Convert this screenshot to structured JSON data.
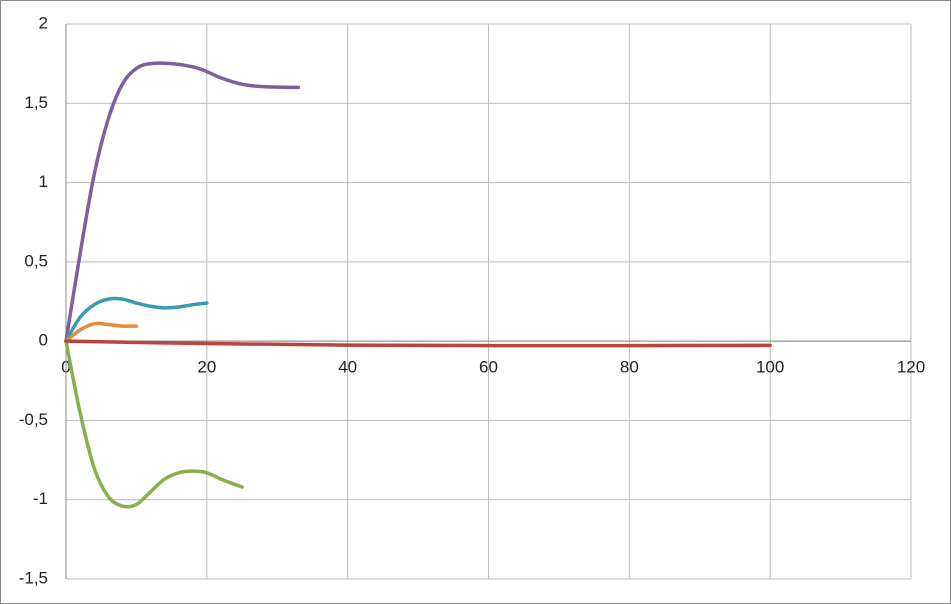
{
  "chart_data": {
    "type": "scatter",
    "smooth": true,
    "grid": true,
    "xlim": [
      0,
      120
    ],
    "xticks": [
      0,
      20,
      40,
      60,
      80,
      100,
      120
    ],
    "ylim": [
      -1.5,
      2
    ],
    "yticks": [
      {
        "value": -1.5,
        "label": "-1,5"
      },
      -1,
      {
        "value": -0.5,
        "label": "-0,5"
      },
      0,
      {
        "value": 0.5,
        "label": "0,5"
      },
      1,
      {
        "value": 1.5,
        "label": "1,5"
      },
      2
    ],
    "series": [
      {
        "color": "#7d5fa0",
        "x": [
          0,
          2,
          4,
          6,
          8,
          10,
          12,
          15,
          18,
          20,
          22,
          25,
          28,
          33
        ],
        "values": [
          0,
          0.55,
          1.05,
          1.4,
          1.62,
          1.72,
          1.75,
          1.75,
          1.73,
          1.7,
          1.66,
          1.62,
          1.605,
          1.6
        ]
      },
      {
        "color": "#3a9bb0",
        "x": [
          0,
          2,
          4,
          6,
          8,
          10,
          12,
          14,
          16,
          18,
          20
        ],
        "values": [
          0,
          0.15,
          0.23,
          0.265,
          0.265,
          0.24,
          0.22,
          0.21,
          0.215,
          0.23,
          0.24
        ]
      },
      {
        "color": "#e58a36",
        "x": [
          0,
          2,
          4,
          6,
          8,
          10
        ],
        "values": [
          0,
          0.07,
          0.11,
          0.105,
          0.095,
          0.095
        ]
      },
      {
        "color": "#8aae4c",
        "x": [
          0,
          2,
          4,
          6,
          8,
          10,
          12,
          14,
          16,
          18,
          20,
          22,
          25
        ],
        "values": [
          0,
          -0.45,
          -0.8,
          -0.98,
          -1.04,
          -1.03,
          -0.95,
          -0.87,
          -0.83,
          -0.82,
          -0.83,
          -0.87,
          -0.92
        ]
      },
      {
        "color": "#b9433e",
        "x": [
          0,
          20,
          40,
          60,
          80,
          100
        ],
        "values": [
          0,
          -0.015,
          -0.025,
          -0.028,
          -0.028,
          -0.027
        ]
      }
    ]
  }
}
